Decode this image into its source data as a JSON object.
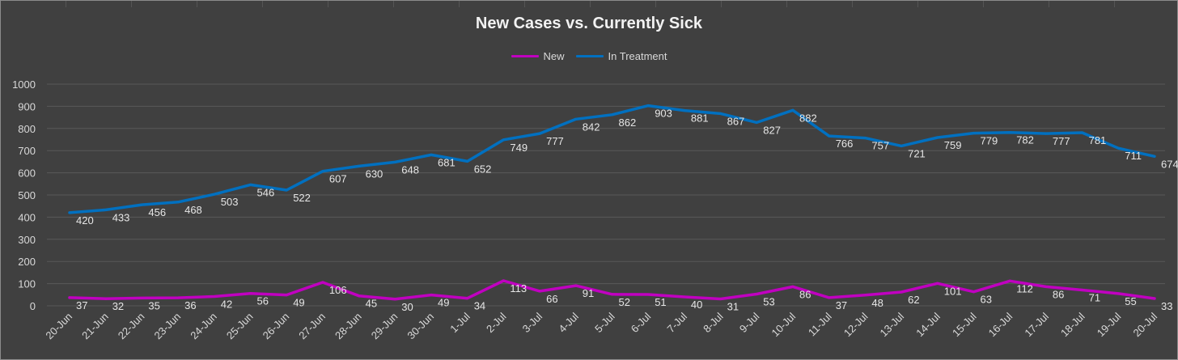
{
  "chart_data": {
    "type": "line",
    "title": "New Cases vs. Currently Sick",
    "xlabel": "",
    "ylabel": "",
    "ylim": [
      0,
      1000
    ],
    "yticks": [
      0,
      100,
      200,
      300,
      400,
      500,
      600,
      700,
      800,
      900,
      1000
    ],
    "grid": true,
    "legend_position": "top-center",
    "categories": [
      "20-Jun",
      "21-Jun",
      "22-Jun",
      "23-Jun",
      "24-Jun",
      "25-Jun",
      "26-Jun",
      "27-Jun",
      "28-Jun",
      "29-Jun",
      "30-Jun",
      "1-Jul",
      "2-Jul",
      "3-Jul",
      "4-Jul",
      "5-Jul",
      "6-Jul",
      "7-Jul",
      "8-Jul",
      "9-Jul",
      "10-Jul",
      "11-Jul",
      "12-Jul",
      "13-Jul",
      "14-Jul",
      "15-Jul",
      "16-Jul",
      "17-Jul",
      "18-Jul",
      "19-Jul",
      "20-Jul"
    ],
    "series": [
      {
        "name": "New",
        "color": "#c000c0",
        "values": [
          37,
          32,
          35,
          36,
          42,
          56,
          49,
          106,
          45,
          30,
          49,
          34,
          113,
          66,
          91,
          52,
          51,
          40,
          31,
          53,
          86,
          37,
          48,
          62,
          101,
          63,
          112,
          86,
          71,
          55,
          33
        ]
      },
      {
        "name": "In Treatment",
        "color": "#0070c0",
        "values": [
          420,
          433,
          456,
          468,
          503,
          546,
          522,
          607,
          630,
          648,
          681,
          652,
          749,
          777,
          842,
          862,
          903,
          881,
          867,
          827,
          882,
          766,
          757,
          721,
          759,
          779,
          782,
          777,
          781,
          711,
          674
        ]
      }
    ]
  },
  "colors": {
    "background": "#404040",
    "gridline": "#595959",
    "text": "#d9d9d9"
  }
}
